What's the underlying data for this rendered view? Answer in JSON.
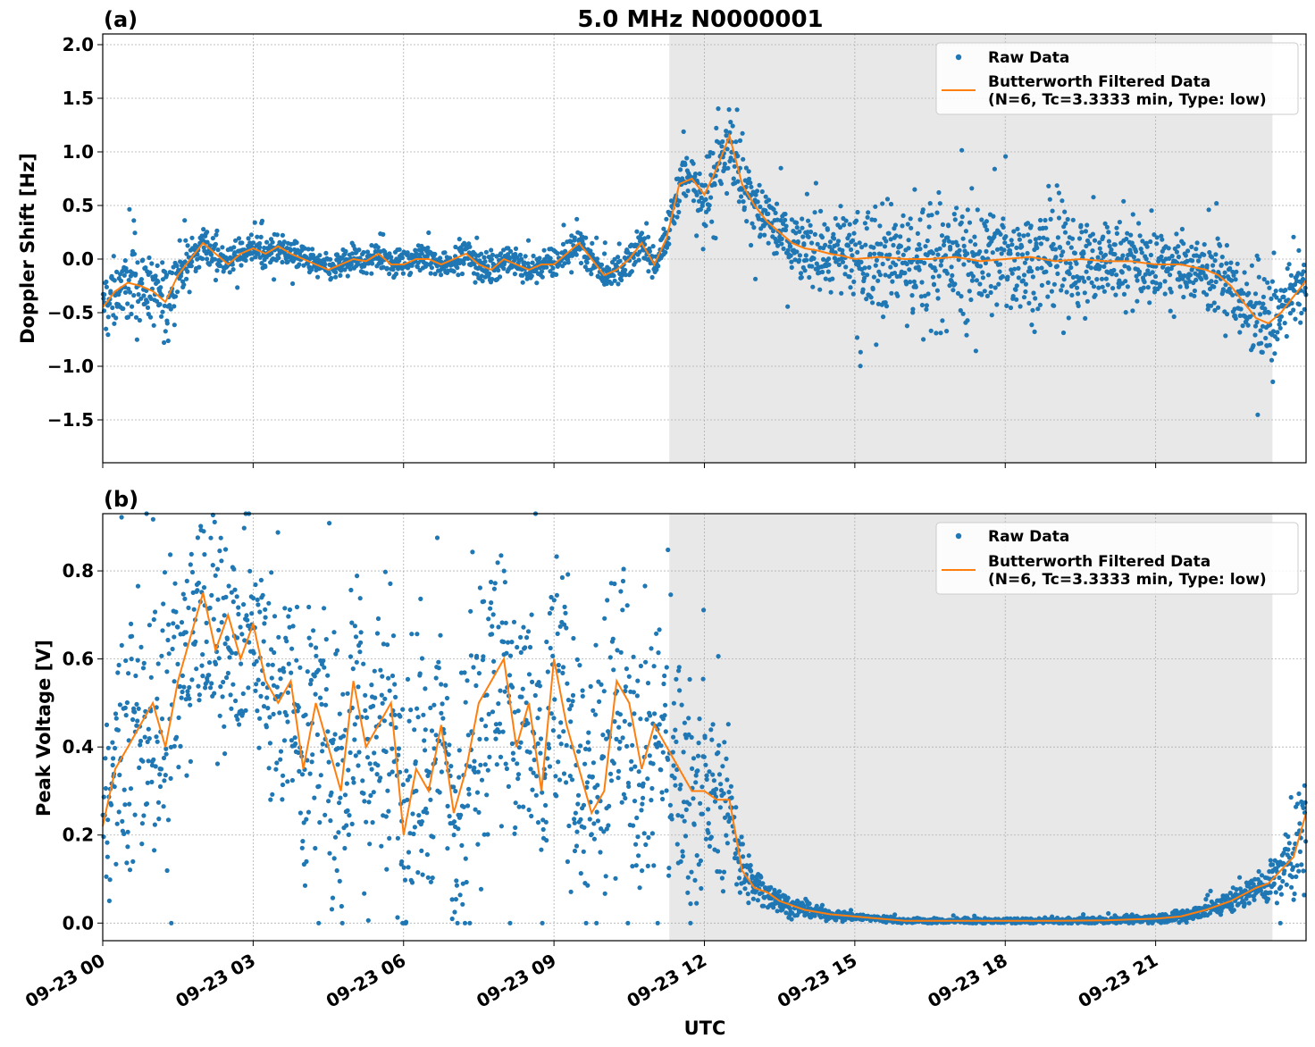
{
  "figure": {
    "title": "5.0 MHz N0000001",
    "xlabel": "UTC"
  },
  "colors": {
    "raw": "#1f77b4",
    "filtered": "#ff7f0e",
    "night_shade": "#e8e8e8",
    "grid": "#b0b0b0"
  },
  "legend": {
    "raw_label": "Raw Data",
    "filtered_line1": "Butterworth Filtered Data",
    "filtered_line2": "(N=6, Tc=3.3333 min, Type: low)"
  },
  "chart_data": [
    {
      "type": "scatter",
      "panel_label": "(a)",
      "ylabel": "Doppler Shift [Hz]",
      "xlim_hours": [
        0,
        24
      ],
      "ylim": [
        -1.9,
        2.1
      ],
      "yticks": [
        -1.5,
        -1.0,
        -0.5,
        0.0,
        0.5,
        1.0,
        1.5,
        2.0
      ],
      "ytick_labels": [
        "−1.5",
        "−1.0",
        "−0.5",
        "0.0",
        "0.5",
        "1.0",
        "1.5",
        "2.0"
      ],
      "shaded_hours": [
        11.3,
        23.33
      ],
      "grid": true,
      "legend_placement": "top-right",
      "series": [
        {
          "name": "Butterworth Filtered Data",
          "x_hours": [
            0,
            0.25,
            0.5,
            0.75,
            1,
            1.25,
            1.5,
            1.75,
            2,
            2.25,
            2.5,
            2.75,
            3,
            3.25,
            3.5,
            3.75,
            4,
            4.25,
            4.5,
            4.75,
            5,
            5.25,
            5.5,
            5.75,
            6,
            6.25,
            6.5,
            6.75,
            7,
            7.25,
            7.5,
            7.75,
            8,
            8.25,
            8.5,
            8.75,
            9,
            9.25,
            9.5,
            9.75,
            10,
            10.25,
            10.5,
            10.75,
            11,
            11.25,
            11.5,
            11.75,
            12,
            12.25,
            12.5,
            12.75,
            13,
            13.25,
            13.5,
            13.75,
            14,
            14.25,
            14.5,
            14.75,
            15,
            15.5,
            16,
            16.5,
            17,
            17.5,
            18,
            18.5,
            19,
            19.5,
            20,
            20.5,
            21,
            21.5,
            22,
            22.25,
            22.5,
            22.75,
            23,
            23.25,
            23.5,
            23.75,
            24
          ],
          "values": [
            -0.45,
            -0.3,
            -0.22,
            -0.25,
            -0.3,
            -0.4,
            -0.15,
            0.0,
            0.15,
            0.05,
            -0.05,
            0.05,
            0.1,
            0.05,
            0.12,
            0.05,
            0.0,
            -0.05,
            -0.1,
            -0.05,
            0.0,
            -0.02,
            0.05,
            -0.05,
            -0.05,
            0.0,
            0.0,
            -0.05,
            0.0,
            0.05,
            -0.05,
            -0.1,
            0.0,
            -0.05,
            -0.1,
            -0.05,
            -0.05,
            0.05,
            0.15,
            0.0,
            -0.15,
            -0.1,
            0.0,
            0.15,
            -0.05,
            0.2,
            0.7,
            0.75,
            0.6,
            0.85,
            1.15,
            0.7,
            0.5,
            0.35,
            0.25,
            0.15,
            0.1,
            0.08,
            0.05,
            0.03,
            0.0,
            0.02,
            0.0,
            0.0,
            0.02,
            -0.02,
            0.0,
            0.02,
            -0.02,
            0.0,
            -0.02,
            -0.02,
            -0.05,
            -0.05,
            -0.1,
            -0.15,
            -0.25,
            -0.4,
            -0.55,
            -0.6,
            -0.5,
            -0.35,
            -0.2
          ]
        },
        {
          "name": "Raw Data",
          "spread_hz": [
            0.3,
            0.35,
            0.35,
            0.35,
            0.35,
            0.4,
            0.3,
            0.25,
            0.2,
            0.2,
            0.15,
            0.15,
            0.15,
            0.15,
            0.15,
            0.15,
            0.15,
            0.15,
            0.15,
            0.15,
            0.15,
            0.15,
            0.15,
            0.15,
            0.15,
            0.15,
            0.15,
            0.15,
            0.15,
            0.15,
            0.15,
            0.15,
            0.15,
            0.15,
            0.15,
            0.15,
            0.15,
            0.15,
            0.15,
            0.15,
            0.15,
            0.15,
            0.15,
            0.15,
            0.15,
            0.2,
            0.3,
            0.3,
            0.35,
            0.4,
            0.45,
            0.4,
            0.35,
            0.35,
            0.35,
            0.35,
            0.35,
            0.35,
            0.4,
            0.45,
            0.5,
            0.55,
            0.6,
            0.6,
            0.6,
            0.6,
            0.55,
            0.55,
            0.55,
            0.5,
            0.45,
            0.4,
            0.35,
            0.35,
            0.35,
            0.35,
            0.35,
            0.4,
            0.45,
            0.45,
            0.4,
            0.35,
            0.3
          ],
          "outlier_density": 0.06
        }
      ]
    },
    {
      "type": "scatter",
      "panel_label": "(b)",
      "ylabel": "Peak Voltage [V]",
      "xlim_hours": [
        0,
        24
      ],
      "ylim": [
        -0.04,
        0.93
      ],
      "yticks": [
        0.0,
        0.2,
        0.4,
        0.6,
        0.8
      ],
      "ytick_labels": [
        "0.0",
        "0.2",
        "0.4",
        "0.6",
        "0.8"
      ],
      "shaded_hours": [
        11.3,
        23.33
      ],
      "grid": true,
      "legend_placement": "top-right",
      "xticks_hours": [
        0,
        3,
        6,
        9,
        12,
        15,
        18,
        21
      ],
      "xtick_labels": [
        "09-23 00",
        "09-23 03",
        "09-23 06",
        "09-23 09",
        "09-23 12",
        "09-23 15",
        "09-23 18",
        "09-23 21"
      ],
      "series": [
        {
          "name": "Butterworth Filtered Data",
          "x_hours": [
            0,
            0.25,
            0.5,
            0.75,
            1,
            1.25,
            1.5,
            1.75,
            2,
            2.25,
            2.5,
            2.75,
            3,
            3.25,
            3.5,
            3.75,
            4,
            4.25,
            4.5,
            4.75,
            5,
            5.25,
            5.5,
            5.75,
            6,
            6.25,
            6.5,
            6.75,
            7,
            7.25,
            7.5,
            7.75,
            8,
            8.25,
            8.5,
            8.75,
            9,
            9.25,
            9.5,
            9.75,
            10,
            10.25,
            10.5,
            10.75,
            11,
            11.25,
            11.5,
            11.75,
            12,
            12.25,
            12.5,
            12.75,
            13,
            13.25,
            13.5,
            13.75,
            14,
            14.5,
            15,
            15.5,
            16,
            17,
            18,
            19,
            20,
            20.5,
            21,
            21.5,
            22,
            22.5,
            23,
            23.25,
            23.5,
            23.75,
            24
          ],
          "values": [
            0.22,
            0.35,
            0.4,
            0.45,
            0.5,
            0.4,
            0.55,
            0.65,
            0.75,
            0.62,
            0.7,
            0.6,
            0.68,
            0.55,
            0.5,
            0.55,
            0.35,
            0.5,
            0.4,
            0.3,
            0.55,
            0.4,
            0.45,
            0.5,
            0.2,
            0.35,
            0.3,
            0.45,
            0.25,
            0.35,
            0.5,
            0.55,
            0.6,
            0.4,
            0.5,
            0.3,
            0.6,
            0.45,
            0.35,
            0.25,
            0.3,
            0.55,
            0.5,
            0.35,
            0.45,
            0.4,
            0.35,
            0.3,
            0.3,
            0.28,
            0.28,
            0.12,
            0.08,
            0.07,
            0.05,
            0.04,
            0.03,
            0.02,
            0.015,
            0.01,
            0.005,
            0.005,
            0.005,
            0.005,
            0.006,
            0.008,
            0.01,
            0.015,
            0.03,
            0.05,
            0.08,
            0.09,
            0.12,
            0.15,
            0.25
          ]
        },
        {
          "name": "Raw Data",
          "spread_v": [
            0.15,
            0.25,
            0.3,
            0.35,
            0.35,
            0.35,
            0.35,
            0.3,
            0.25,
            0.3,
            0.3,
            0.3,
            0.25,
            0.3,
            0.3,
            0.3,
            0.35,
            0.35,
            0.35,
            0.35,
            0.35,
            0.35,
            0.35,
            0.35,
            0.35,
            0.35,
            0.3,
            0.3,
            0.3,
            0.3,
            0.35,
            0.35,
            0.35,
            0.35,
            0.35,
            0.35,
            0.35,
            0.35,
            0.35,
            0.35,
            0.35,
            0.35,
            0.35,
            0.35,
            0.35,
            0.35,
            0.3,
            0.28,
            0.25,
            0.2,
            0.15,
            0.08,
            0.05,
            0.04,
            0.03,
            0.025,
            0.02,
            0.015,
            0.01,
            0.008,
            0.006,
            0.006,
            0.006,
            0.006,
            0.008,
            0.01,
            0.012,
            0.015,
            0.025,
            0.03,
            0.04,
            0.05,
            0.08,
            0.1,
            0.15
          ],
          "outlier_density": 0.03
        }
      ]
    }
  ]
}
